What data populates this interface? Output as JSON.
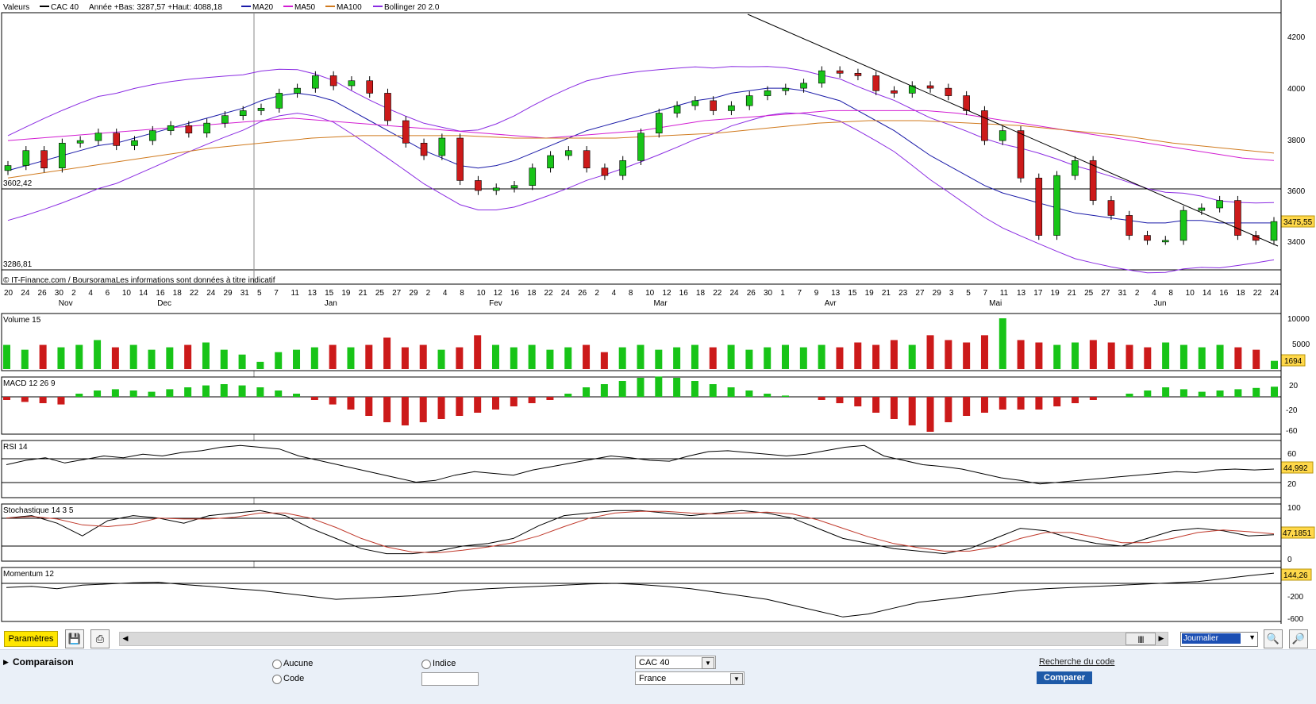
{
  "legend": {
    "label": "Valeurs",
    "items": [
      {
        "label": "CAC 40",
        "color": "#000000"
      },
      {
        "label": "Année +Bas: 3287,57 +Haut: 4088,18",
        "color": ""
      },
      {
        "label": "MA20",
        "color": "#1a1aa8"
      },
      {
        "label": "MA50",
        "color": "#d21dd2"
      },
      {
        "label": "MA100",
        "color": "#d07a1e"
      },
      {
        "label": "Bollinger 20 2.0",
        "color": "#8a2be2"
      }
    ]
  },
  "price_panel": {
    "level_left_top": "3602,42",
    "level_left_bottom": "3286,81",
    "current_price": "3475,55",
    "y_ticks": [
      "4200",
      "4000",
      "3800",
      "3600",
      "3400"
    ],
    "copyright": "© IT-Finance.com / BoursoramaLes informations sont données à titre indicatif"
  },
  "date_axis": {
    "days": [
      "20",
      "24",
      "26",
      "30",
      "2",
      "4",
      "6",
      "10",
      "14",
      "16",
      "18",
      "22",
      "24",
      "29",
      "31",
      "5",
      "7",
      "11",
      "13",
      "15",
      "19",
      "21",
      "25",
      "27",
      "29",
      "2",
      "4",
      "8",
      "10",
      "12",
      "16",
      "18",
      "22",
      "24",
      "26",
      "2",
      "4",
      "8",
      "10",
      "12",
      "16",
      "18",
      "22",
      "24",
      "26",
      "30",
      "1",
      "7",
      "9",
      "13",
      "15",
      "19",
      "21",
      "23",
      "27",
      "29",
      "3",
      "5",
      "7",
      "11",
      "13",
      "17",
      "19",
      "21",
      "25",
      "27",
      "31",
      "2",
      "4",
      "8",
      "10",
      "14",
      "16",
      "18",
      "22",
      "24"
    ],
    "months": [
      {
        "label": "Nov",
        "x": "Nov"
      },
      {
        "label": "Dec",
        "x": "Dec"
      },
      {
        "label": "Jan",
        "x": "Jan"
      },
      {
        "label": "Fev",
        "x": "Fev"
      },
      {
        "label": "Mar",
        "x": "Mar"
      },
      {
        "label": "Avr",
        "x": "Avr"
      },
      {
        "label": "Mai",
        "x": "Mai"
      },
      {
        "label": "Jun",
        "x": "Jun"
      }
    ]
  },
  "volume_panel": {
    "title": "Volume 15",
    "y_ticks": [
      "10000",
      "5000"
    ],
    "current": "1694"
  },
  "macd_panel": {
    "title": "MACD 12 26 9",
    "y_ticks": [
      "20",
      "-20",
      "-60"
    ]
  },
  "rsi_panel": {
    "title": "RSI 14",
    "y_ticks": [
      "60",
      "20"
    ],
    "current": "44,992"
  },
  "stoch_panel": {
    "title": "Stochastique 14 3 5",
    "y_ticks": [
      "100",
      "50",
      "0"
    ],
    "current": "47,1851"
  },
  "momentum_panel": {
    "title": "Momentum 12",
    "y_ticks": [
      "-200",
      "-600"
    ],
    "current": "144,26"
  },
  "toolbar": {
    "params_label": "Paramètres",
    "period_value": "Journalier",
    "scroll_thumb": "|||||"
  },
  "comparison": {
    "title": "Comparaison",
    "radio_aucune": "Aucune",
    "radio_code": "Code",
    "radio_indice": "Indice",
    "index_value": "CAC 40",
    "market_value": "France",
    "search_link": "Recherche du code",
    "compare_button": "Comparer"
  },
  "chart_data": {
    "type": "candlestick",
    "title": "CAC 40",
    "year_low": 3287.57,
    "year_high": 4088.18,
    "ylim": [
      3250,
      4300
    ],
    "x": [
      "20-Nov",
      "24-Nov",
      "26-Nov",
      "30-Nov",
      "2-Dec",
      "4-Dec",
      "6-Dec",
      "10-Dec",
      "14-Dec",
      "16-Dec",
      "18-Dec",
      "22-Dec",
      "24-Dec",
      "29-Dec",
      "31-Dec",
      "5-Jan",
      "7-Jan",
      "11-Jan",
      "13-Jan",
      "15-Jan",
      "19-Jan",
      "21-Jan",
      "25-Jan",
      "27-Jan",
      "29-Jan",
      "2-Feb",
      "4-Feb",
      "8-Feb",
      "10-Feb",
      "12-Feb",
      "16-Feb",
      "18-Feb",
      "22-Feb",
      "24-Feb",
      "26-Feb",
      "2-Mar",
      "4-Mar",
      "8-Mar",
      "10-Mar",
      "12-Mar",
      "16-Mar",
      "18-Mar",
      "22-Mar",
      "24-Mar",
      "26-Mar",
      "30-Mar",
      "1-Apr",
      "7-Apr",
      "9-Apr",
      "13-Apr",
      "15-Apr",
      "19-Apr",
      "21-Apr",
      "23-Apr",
      "27-Apr",
      "29-Apr",
      "3-May",
      "5-May",
      "7-May",
      "11-May",
      "13-May",
      "17-May",
      "19-May",
      "21-May",
      "25-May",
      "27-May",
      "31-May",
      "2-Jun",
      "4-Jun",
      "8-Jun",
      "10-Jun"
    ],
    "close": [
      3700,
      3760,
      3690,
      3790,
      3800,
      3830,
      3780,
      3800,
      3840,
      3860,
      3830,
      3870,
      3900,
      3920,
      3930,
      3990,
      4010,
      4060,
      4020,
      4040,
      3990,
      3880,
      3790,
      3740,
      3810,
      3640,
      3600,
      3610,
      3620,
      3690,
      3740,
      3760,
      3690,
      3660,
      3720,
      3830,
      3910,
      3940,
      3960,
      3920,
      3940,
      3980,
      4000,
      4010,
      4030,
      4080,
      4070,
      4060,
      4000,
      3990,
      4020,
      4010,
      3980,
      3920,
      3800,
      3840,
      3650,
      3420,
      3660,
      3720,
      3560,
      3500,
      3420,
      3400,
      3400,
      3520,
      3530,
      3560,
      3420,
      3400,
      3475.55
    ],
    "ma20": [
      3680,
      3700,
      3720,
      3740,
      3760,
      3780,
      3790,
      3810,
      3830,
      3850,
      3870,
      3890,
      3910,
      3930,
      3960,
      3980,
      3990,
      3980,
      3960,
      3920,
      3880,
      3840,
      3800,
      3760,
      3730,
      3700,
      3690,
      3700,
      3720,
      3750,
      3780,
      3810,
      3840,
      3860,
      3880,
      3900,
      3920,
      3940,
      3960,
      3970,
      3990,
      4000,
      4010,
      4010,
      4000,
      3980,
      3960,
      3920,
      3880,
      3840,
      3790,
      3740,
      3700,
      3660,
      3620,
      3590,
      3570,
      3550,
      3530,
      3510,
      3500,
      3490,
      3480,
      3470,
      3470,
      3480,
      3480,
      3470,
      3470,
      3470,
      3470
    ],
    "ma50": [
      3800,
      3810,
      3820,
      3830,
      3840,
      3850,
      3860,
      3870,
      3880,
      3890,
      3880,
      3870,
      3860,
      3850,
      3840,
      3830,
      3820,
      3810,
      3820,
      3830,
      3840,
      3860,
      3880,
      3890,
      3900,
      3910,
      3920,
      3920,
      3920,
      3920,
      3910,
      3890,
      3870,
      3850,
      3830,
      3810,
      3790,
      3770,
      3750,
      3730,
      3720
    ],
    "ma100": [
      3650,
      3680,
      3710,
      3740,
      3770,
      3790,
      3810,
      3820,
      3820,
      3820,
      3810,
      3810,
      3810,
      3820,
      3830,
      3850,
      3870,
      3880,
      3880,
      3870,
      3860,
      3840,
      3820,
      3790,
      3770,
      3750
    ],
    "volume": [
      5000,
      4000,
      5000,
      4500,
      5000,
      6000,
      4500,
      5000,
      4000,
      4500,
      5000,
      5500,
      4000,
      3000,
      1500,
      3500,
      4000,
      4500,
      5000,
      4500,
      5000,
      6500,
      4500,
      5000,
      4000,
      4500,
      7000,
      5000,
      4500,
      5000,
      4000,
      4500,
      5000,
      3500,
      4500,
      5000,
      4000,
      4500,
      5000,
      4500,
      5000,
      4000,
      4500,
      5000,
      4500,
      5000,
      4500,
      5500,
      5000,
      6000,
      5000,
      7000,
      6000,
      5500,
      7000,
      10500,
      6000,
      5500,
      5000,
      5500,
      6000,
      5500,
      5000,
      4500,
      5500,
      5000,
      4500,
      5000,
      4500,
      4000,
      1694
    ],
    "macd_hist": [
      -5,
      -8,
      -10,
      -12,
      5,
      10,
      12,
      10,
      8,
      12,
      15,
      18,
      20,
      18,
      15,
      10,
      5,
      -5,
      -12,
      -20,
      -30,
      -40,
      -45,
      -40,
      -35,
      -30,
      -25,
      -20,
      -15,
      -10,
      -5,
      5,
      15,
      20,
      25,
      30,
      32,
      30,
      25,
      20,
      15,
      10,
      5,
      2,
      0,
      -5,
      -10,
      -15,
      -25,
      -35,
      -45,
      -55,
      -40,
      -30,
      -25,
      -20,
      -20,
      -20,
      -15,
      -10,
      -5,
      0,
      5,
      10,
      15,
      12,
      8,
      10,
      12,
      14,
      16
    ],
    "rsi": [
      50,
      55,
      58,
      52,
      56,
      60,
      58,
      62,
      60,
      64,
      66,
      70,
      72,
      70,
      68,
      60,
      55,
      50,
      45,
      40,
      35,
      30,
      32,
      38,
      42,
      40,
      38,
      44,
      48,
      52,
      56,
      60,
      58,
      55,
      54,
      60,
      65,
      66,
      64,
      62,
      60,
      62,
      66,
      70,
      72,
      60,
      55,
      50,
      48,
      45,
      40,
      35,
      32,
      28,
      30,
      32,
      34,
      36,
      38,
      40,
      42,
      41,
      44,
      45,
      44,
      45
    ],
    "stoch_k": [
      80,
      85,
      70,
      45,
      75,
      85,
      80,
      70,
      85,
      90,
      95,
      85,
      60,
      40,
      20,
      10,
      10,
      15,
      25,
      30,
      40,
      65,
      85,
      90,
      95,
      95,
      90,
      85,
      90,
      95,
      90,
      80,
      60,
      40,
      30,
      20,
      15,
      10,
      20,
      40,
      60,
      55,
      40,
      30,
      25,
      40,
      55,
      60,
      55,
      45,
      47.19
    ],
    "momentum": [
      -100,
      -80,
      -120,
      -60,
      -40,
      -20,
      -10,
      -50,
      -80,
      -120,
      -150,
      -200,
      -250,
      -300,
      -280,
      -260,
      -240,
      -200,
      -150,
      -120,
      -100,
      -80,
      -60,
      -40,
      -30,
      -50,
      -80,
      -120,
      -180,
      -240,
      -300,
      -400,
      -500,
      -600,
      -550,
      -450,
      -350,
      -300,
      -250,
      -200,
      -150,
      -120,
      -100,
      -80,
      -60,
      -40,
      -20,
      0,
      50,
      100,
      144.26
    ],
    "horizontal_levels": [
      3602.42,
      3286.81
    ],
    "trendline": "descending from Mar peak toward Jun",
    "grid": false,
    "legend_position": "top-left"
  }
}
